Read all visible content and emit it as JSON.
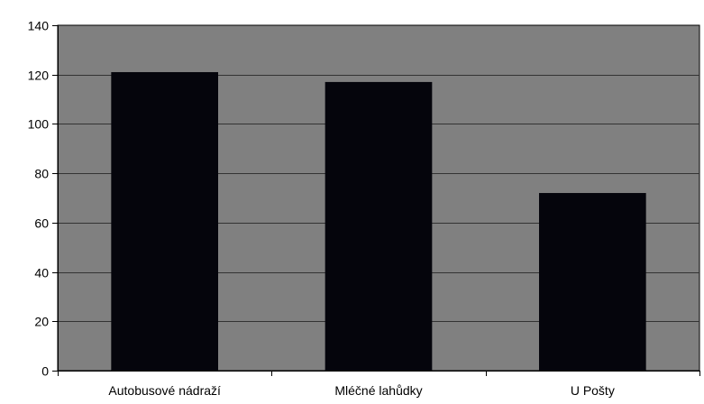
{
  "chart_data": {
    "type": "bar",
    "categories": [
      "Autobusové nádraží",
      "Mléčné lahůdky",
      "U Pošty"
    ],
    "values": [
      121,
      117,
      72
    ],
    "title": "",
    "xlabel": "",
    "ylabel": "",
    "ylim": [
      0,
      140
    ],
    "yticks": [
      "0",
      "20",
      "40",
      "60",
      "80",
      "100",
      "120",
      "140"
    ],
    "grid": true,
    "legend": "none",
    "colors": {
      "plot_background": "#808080",
      "bar_fill": "#05050c",
      "gridline": "#333333",
      "axis": "#000000"
    }
  }
}
